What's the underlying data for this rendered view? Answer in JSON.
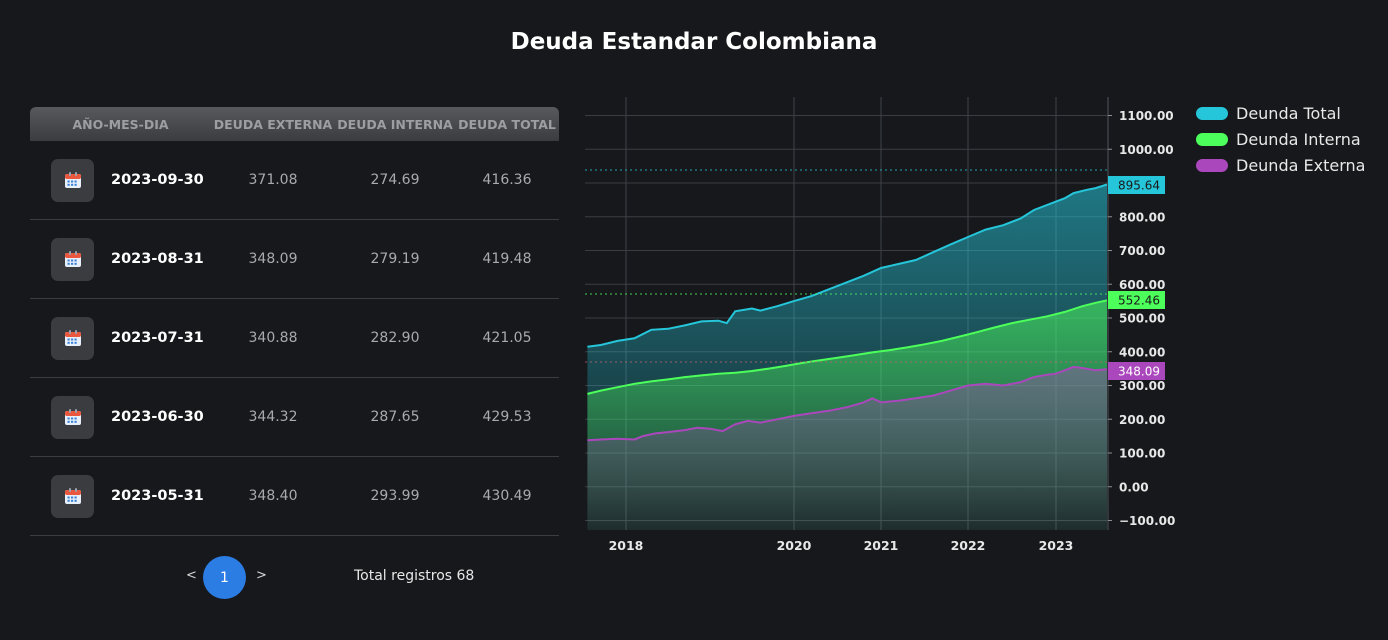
{
  "title": "Deuda Estandar Colombiana",
  "table": {
    "headers": [
      "AÑO-MES-DIA",
      "DEUDA EXTERNA",
      "DEUDA INTERNA",
      "DEUDA TOTAL"
    ],
    "rows": [
      {
        "date": "2023-09-30",
        "externa": "371.08",
        "interna": "274.69",
        "total": "416.36"
      },
      {
        "date": "2023-08-31",
        "externa": "348.09",
        "interna": "279.19",
        "total": "419.48"
      },
      {
        "date": "2023-07-31",
        "externa": "340.88",
        "interna": "282.90",
        "total": "421.05"
      },
      {
        "date": "2023-06-30",
        "externa": "344.32",
        "interna": "287.65",
        "total": "429.53"
      },
      {
        "date": "2023-05-31",
        "externa": "348.40",
        "interna": "293.99",
        "total": "430.49"
      }
    ],
    "icon": "calendar-icon"
  },
  "pagination": {
    "prev": "<",
    "page": "1",
    "next": ">",
    "total_label": "Total registros 68"
  },
  "legend": [
    {
      "label": "Deunda Total",
      "color": "#26c6da"
    },
    {
      "label": "Deunda Interna",
      "color": "#4cff5a"
    },
    {
      "label": "Deunda Externa",
      "color": "#ab47bc"
    }
  ],
  "chart_data": {
    "type": "area",
    "x_ticks": [
      "2018",
      "2020",
      "2021",
      "2022",
      "2023"
    ],
    "y_ticks": [
      "1100.00",
      "1000.00",
      "900.00",
      "800.00",
      "700.00",
      "600.00",
      "500.00",
      "400.00",
      "300.00",
      "200.00",
      "100.00",
      "0.00",
      "−100.00"
    ],
    "ylim": [
      -100,
      1200
    ],
    "xlim": [
      2017.54,
      2023.58
    ],
    "grid": true,
    "series": [
      {
        "name": "Deunda Total",
        "color": "#26c6da",
        "last_label": "895.64",
        "points": [
          [
            2017.54,
            415
          ],
          [
            2017.7,
            420
          ],
          [
            2017.9,
            432
          ],
          [
            2018.1,
            440
          ],
          [
            2018.3,
            465
          ],
          [
            2018.5,
            468
          ],
          [
            2018.7,
            478
          ],
          [
            2018.9,
            490
          ],
          [
            2019.1,
            492
          ],
          [
            2019.2,
            485
          ],
          [
            2019.3,
            520
          ],
          [
            2019.5,
            528
          ],
          [
            2019.6,
            522
          ],
          [
            2019.8,
            535
          ],
          [
            2020.0,
            550
          ],
          [
            2020.2,
            565
          ],
          [
            2020.4,
            585
          ],
          [
            2020.6,
            605
          ],
          [
            2020.8,
            625
          ],
          [
            2021.0,
            648
          ],
          [
            2021.2,
            660
          ],
          [
            2021.4,
            672
          ],
          [
            2021.6,
            695
          ],
          [
            2021.8,
            718
          ],
          [
            2022.0,
            740
          ],
          [
            2022.2,
            762
          ],
          [
            2022.4,
            775
          ],
          [
            2022.6,
            795
          ],
          [
            2022.75,
            820
          ],
          [
            2022.9,
            835
          ],
          [
            2023.0,
            845
          ],
          [
            2023.1,
            855
          ],
          [
            2023.2,
            870
          ],
          [
            2023.35,
            880
          ],
          [
            2023.45,
            885
          ],
          [
            2023.58,
            895.64
          ]
        ]
      },
      {
        "name": "Deunda Interna",
        "color": "#4cff5a",
        "last_label": "552.46",
        "points": [
          [
            2017.54,
            275
          ],
          [
            2017.7,
            285
          ],
          [
            2017.9,
            295
          ],
          [
            2018.1,
            305
          ],
          [
            2018.3,
            312
          ],
          [
            2018.5,
            318
          ],
          [
            2018.7,
            325
          ],
          [
            2018.9,
            330
          ],
          [
            2019.1,
            335
          ],
          [
            2019.3,
            338
          ],
          [
            2019.5,
            343
          ],
          [
            2019.7,
            350
          ],
          [
            2019.9,
            358
          ],
          [
            2020.1,
            367
          ],
          [
            2020.3,
            375
          ],
          [
            2020.5,
            382
          ],
          [
            2020.7,
            390
          ],
          [
            2020.9,
            398
          ],
          [
            2021.1,
            405
          ],
          [
            2021.3,
            413
          ],
          [
            2021.5,
            422
          ],
          [
            2021.7,
            432
          ],
          [
            2021.9,
            445
          ],
          [
            2022.1,
            458
          ],
          [
            2022.3,
            472
          ],
          [
            2022.5,
            485
          ],
          [
            2022.7,
            495
          ],
          [
            2022.9,
            505
          ],
          [
            2023.1,
            518
          ],
          [
            2023.3,
            535
          ],
          [
            2023.45,
            545
          ],
          [
            2023.58,
            552.46
          ]
        ]
      },
      {
        "name": "Deunda Externa",
        "color": "#ab47bc",
        "last_label": "348.09",
        "points": [
          [
            2017.54,
            138
          ],
          [
            2017.7,
            140
          ],
          [
            2017.9,
            142
          ],
          [
            2018.1,
            140
          ],
          [
            2018.2,
            150
          ],
          [
            2018.35,
            158
          ],
          [
            2018.5,
            162
          ],
          [
            2018.7,
            168
          ],
          [
            2018.85,
            175
          ],
          [
            2019.0,
            172
          ],
          [
            2019.15,
            165
          ],
          [
            2019.3,
            185
          ],
          [
            2019.45,
            195
          ],
          [
            2019.6,
            190
          ],
          [
            2019.8,
            200
          ],
          [
            2020.0,
            210
          ],
          [
            2020.2,
            218
          ],
          [
            2020.4,
            225
          ],
          [
            2020.6,
            235
          ],
          [
            2020.8,
            250
          ],
          [
            2020.9,
            262
          ],
          [
            2021.0,
            250
          ],
          [
            2021.2,
            255
          ],
          [
            2021.4,
            262
          ],
          [
            2021.6,
            270
          ],
          [
            2021.8,
            285
          ],
          [
            2022.0,
            300
          ],
          [
            2022.2,
            305
          ],
          [
            2022.4,
            300
          ],
          [
            2022.6,
            310
          ],
          [
            2022.75,
            325
          ],
          [
            2022.9,
            332
          ],
          [
            2023.0,
            335
          ],
          [
            2023.1,
            345
          ],
          [
            2023.2,
            355
          ],
          [
            2023.3,
            352
          ],
          [
            2023.45,
            345
          ],
          [
            2023.58,
            348.09
          ]
        ]
      }
    ]
  }
}
